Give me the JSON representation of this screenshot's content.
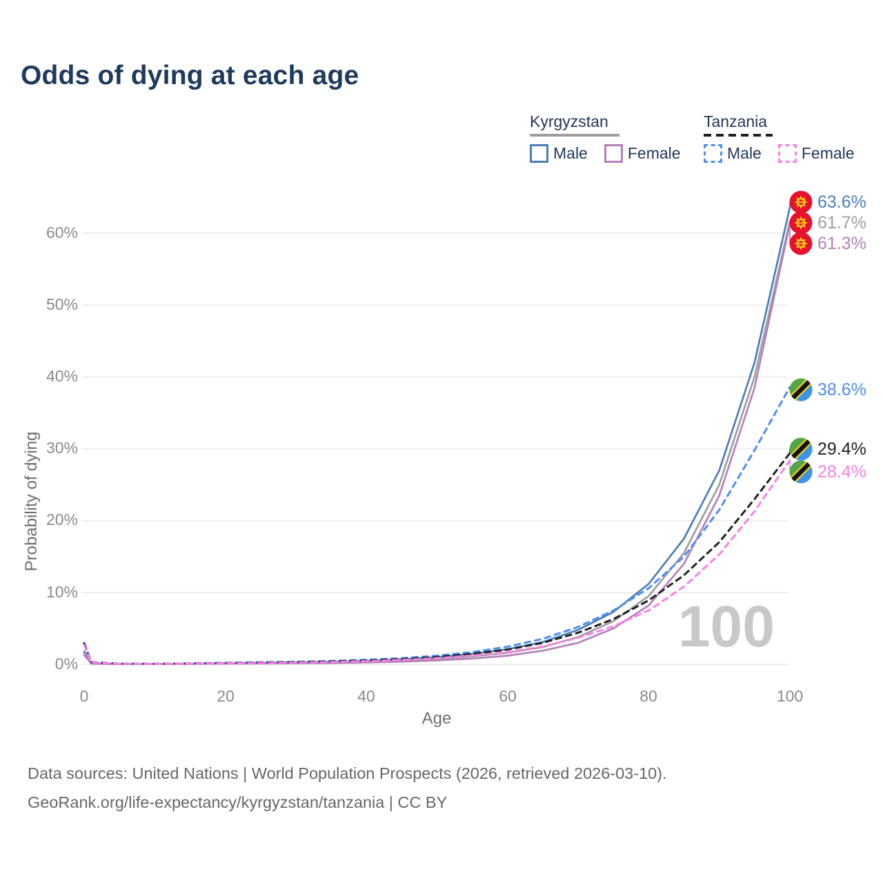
{
  "page": {
    "title": "Odds of dying at each age"
  },
  "legend": {
    "groups": [
      {
        "label": "Kyrgyzstan",
        "underline": "solid",
        "underline_color": "#9e9e9e",
        "items": [
          {
            "label": "Male",
            "color": "#4a7db8",
            "dashed": false
          },
          {
            "label": "Female",
            "color": "#b57fba",
            "dashed": false
          }
        ]
      },
      {
        "label": "Tanzania",
        "underline": "dashed",
        "underline_color": "#1f1f1f",
        "items": [
          {
            "label": "Male",
            "color": "#4f8df5",
            "dashed": true
          },
          {
            "label": "Female",
            "color": "#fb7ee8",
            "dashed": true
          }
        ]
      }
    ]
  },
  "chart_data": {
    "type": "line",
    "title": "Odds of dying at each age",
    "xlabel": "Age",
    "ylabel": "Probability of dying",
    "x_ticks": [
      "0",
      "20",
      "40",
      "60",
      "80",
      "100"
    ],
    "y_tick_labels": [
      "0%",
      "10%",
      "20%",
      "30%",
      "40%",
      "50%",
      "60%"
    ],
    "xlim": [
      0,
      100
    ],
    "ylim": [
      0,
      66
    ],
    "grid": "horizontal",
    "watermark": "100",
    "ages": [
      0,
      1,
      5,
      10,
      15,
      20,
      25,
      30,
      35,
      40,
      45,
      50,
      55,
      60,
      65,
      70,
      75,
      80,
      85,
      90,
      95,
      100
    ],
    "series": [
      {
        "name": "Kyrgyzstan Male",
        "country": "Kyrgyzstan",
        "sex": "male",
        "style": "solid",
        "color": "#4a7db8",
        "values": [
          1.8,
          0.12,
          0.05,
          0.05,
          0.09,
          0.17,
          0.22,
          0.28,
          0.35,
          0.48,
          0.68,
          0.98,
          1.45,
          2.1,
          3.1,
          4.8,
          7.3,
          11.2,
          17.5,
          27.0,
          42.0,
          63.6
        ],
        "end_label": "63.6%"
      },
      {
        "name": "Kyrgyzstan Both sexes",
        "country": "Kyrgyzstan",
        "sex": "both",
        "style": "solid",
        "color": "#9e9e9e",
        "values": [
          1.55,
          0.1,
          0.04,
          0.04,
          0.07,
          0.12,
          0.16,
          0.21,
          0.27,
          0.37,
          0.52,
          0.75,
          1.1,
          1.6,
          2.4,
          3.8,
          6.0,
          9.5,
          15.5,
          25.0,
          40.0,
          61.7
        ],
        "end_label": "61.7%"
      },
      {
        "name": "Kyrgyzstan Female",
        "country": "Kyrgyzstan",
        "sex": "female",
        "style": "solid",
        "color": "#b57fba",
        "values": [
          1.3,
          0.09,
          0.03,
          0.03,
          0.05,
          0.08,
          0.11,
          0.14,
          0.18,
          0.26,
          0.37,
          0.54,
          0.8,
          1.2,
          1.9,
          3.0,
          5.0,
          8.2,
          14.0,
          23.5,
          38.5,
          61.3
        ],
        "end_label": "61.3%"
      },
      {
        "name": "Tanzania Male",
        "country": "Tanzania",
        "sex": "male",
        "style": "dashed",
        "color": "#4f8df5",
        "values": [
          3.0,
          0.3,
          0.1,
          0.08,
          0.12,
          0.2,
          0.28,
          0.36,
          0.46,
          0.62,
          0.85,
          1.2,
          1.7,
          2.45,
          3.55,
          5.2,
          7.5,
          10.6,
          15.0,
          21.5,
          29.8,
          38.6
        ],
        "end_label": "38.6%"
      },
      {
        "name": "Tanzania Both sexes",
        "country": "Tanzania",
        "sex": "both",
        "style": "dashed",
        "color": "#1f1f1f",
        "values": [
          2.85,
          0.28,
          0.09,
          0.07,
          0.11,
          0.17,
          0.24,
          0.31,
          0.4,
          0.53,
          0.73,
          1.02,
          1.45,
          2.05,
          3.0,
          4.4,
          6.3,
          8.9,
          12.4,
          17.0,
          23.0,
          29.4
        ],
        "end_label": "29.4%"
      },
      {
        "name": "Tanzania Female",
        "country": "Tanzania",
        "sex": "female",
        "style": "dashed",
        "color": "#fb7ee8",
        "values": [
          2.7,
          0.26,
          0.08,
          0.06,
          0.09,
          0.14,
          0.19,
          0.25,
          0.33,
          0.44,
          0.61,
          0.86,
          1.22,
          1.7,
          2.5,
          3.7,
          5.3,
          7.5,
          10.8,
          15.3,
          21.3,
          28.4
        ],
        "end_label": "28.4%"
      }
    ]
  },
  "colors": {
    "title_text": "#1e3a5d",
    "tick_text": "#8a8a8a",
    "grid": "#e9e9e9",
    "watermark": "#c8c8c8",
    "kyrgyzstan_flag_red": "#e8112d",
    "kyrgyzstan_flag_yellow": "#fbd116",
    "tanzania_flag_green": "#54a546",
    "tanzania_flag_blue": "#3d94e6",
    "tanzania_flag_yellow": "#f5d318",
    "tanzania_flag_black": "#141414"
  },
  "footer": {
    "line1": "Data sources: United Nations | World Population Prospects (2026, retrieved 2026-03-10).",
    "line2": "GeoRank.org/life-expectancy/kyrgyzstan/tanzania | CC BY"
  }
}
